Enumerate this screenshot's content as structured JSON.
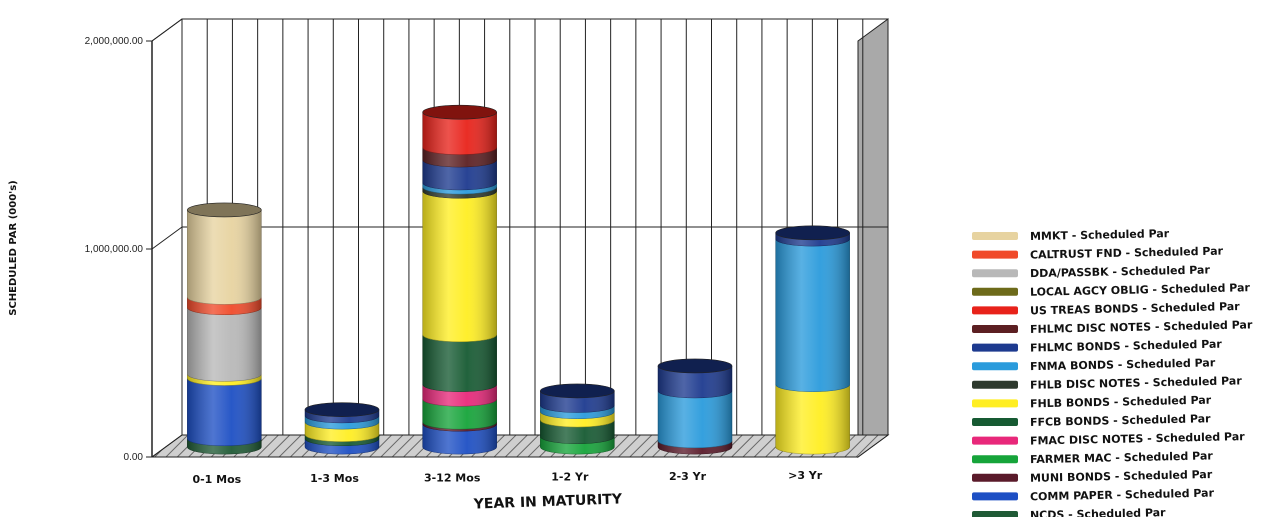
{
  "chart_data": {
    "type": "bar",
    "stacked": true,
    "style": "3d-cylinder",
    "title": "",
    "xlabel": "YEAR IN MATURITY",
    "ylabel": "SCHEDULED PAR (000's)",
    "ylim": [
      0,
      2000000
    ],
    "y_ticks": [
      {
        "value": 0,
        "label": "0.00"
      },
      {
        "value": 1000000,
        "label": "1,000,000.00"
      },
      {
        "value": 2000000,
        "label": "2,000,000.00"
      }
    ],
    "grid": true,
    "legend_position": "right",
    "categories": [
      "0-1 Mos",
      "1-3 Mos",
      "3-12 Mos",
      "1-2 Yr",
      "2-3 Yr",
      ">3 Yr"
    ],
    "series": [
      {
        "name": "NCDS - Scheduled Par",
        "color": "#1f5a35",
        "values": [
          40000,
          0,
          0,
          0,
          0,
          0
        ]
      },
      {
        "name": "COMM PAPER - Scheduled Par",
        "color": "#1d4fc4",
        "values": [
          290000,
          40000,
          110000,
          0,
          0,
          0
        ]
      },
      {
        "name": "MUNI BONDS - Scheduled Par",
        "color": "#5a1a2a",
        "values": [
          0,
          0,
          10000,
          0,
          30000,
          0
        ]
      },
      {
        "name": "FARMER MAC - Scheduled Par",
        "color": "#16a43a",
        "values": [
          0,
          0,
          110000,
          50000,
          0,
          0
        ]
      },
      {
        "name": "FMAC DISC NOTES - Scheduled Par",
        "color": "#e8287a",
        "values": [
          0,
          0,
          70000,
          0,
          0,
          0
        ]
      },
      {
        "name": "FFCB BONDS - Scheduled Par",
        "color": "#165a32",
        "values": [
          0,
          20000,
          240000,
          80000,
          0,
          0
        ]
      },
      {
        "name": "FHLB BONDS - Scheduled Par",
        "color": "#ffee22",
        "values": [
          20000,
          60000,
          690000,
          40000,
          0,
          300000
        ]
      },
      {
        "name": "FHLB DISC NOTES - Scheduled Par",
        "color": "#2e3a2e",
        "values": [
          0,
          0,
          20000,
          0,
          0,
          0
        ]
      },
      {
        "name": "FNMA BONDS - Scheduled Par",
        "color": "#2a9bdc",
        "values": [
          0,
          30000,
          20000,
          30000,
          240000,
          700000
        ]
      },
      {
        "name": "FHLMC BONDS - Scheduled Par",
        "color": "#1d3a8f",
        "values": [
          0,
          30000,
          110000,
          70000,
          120000,
          30000
        ]
      },
      {
        "name": "FHLMC DISC NOTES - Scheduled Par",
        "color": "#5c1f22",
        "values": [
          0,
          0,
          60000,
          0,
          0,
          0
        ]
      },
      {
        "name": "US TREAS BONDS - Scheduled Par",
        "color": "#e8221a",
        "values": [
          0,
          0,
          170000,
          0,
          0,
          0
        ]
      },
      {
        "name": "LOCAL AGCY OBLIG - Scheduled Par",
        "color": "#6d6a1a",
        "values": [
          0,
          0,
          0,
          0,
          0,
          0
        ]
      },
      {
        "name": "DDA/PASSBK - Scheduled Par",
        "color": "#b8b8b8",
        "values": [
          320000,
          0,
          0,
          0,
          0,
          0
        ]
      },
      {
        "name": "CALTRUST FND - Scheduled Par",
        "color": "#f04a2a",
        "values": [
          50000,
          0,
          0,
          0,
          0,
          0
        ]
      },
      {
        "name": "MMKT - Scheduled Par",
        "color": "#e7d3a0",
        "values": [
          420000,
          0,
          0,
          0,
          0,
          0
        ]
      }
    ],
    "legend_order": [
      "MMKT - Scheduled Par",
      "CALTRUST FND - Scheduled Par",
      "DDA/PASSBK - Scheduled Par",
      "LOCAL AGCY OBLIG - Scheduled Par",
      "US TREAS BONDS - Scheduled Par",
      "FHLMC DISC NOTES - Scheduled Par",
      "FHLMC BONDS - Scheduled Par",
      "FNMA BONDS - Scheduled Par",
      "FHLB DISC NOTES - Scheduled Par",
      "FHLB BONDS - Scheduled Par",
      "FFCB BONDS - Scheduled Par",
      "FMAC DISC NOTES - Scheduled Par",
      "FARMER MAC - Scheduled Par",
      "MUNI BONDS - Scheduled Par",
      "COMM PAPER - Scheduled Par",
      "NCDS - Scheduled Par"
    ]
  }
}
